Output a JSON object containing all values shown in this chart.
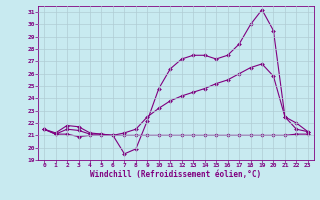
{
  "xlabel": "Windchill (Refroidissement éolien,°C)",
  "xlim": [
    -0.5,
    23.5
  ],
  "ylim": [
    19,
    31.5
  ],
  "yticks": [
    19,
    20,
    21,
    22,
    23,
    24,
    25,
    26,
    27,
    28,
    29,
    30,
    31
  ],
  "xticks": [
    0,
    1,
    2,
    3,
    4,
    5,
    6,
    7,
    8,
    9,
    10,
    11,
    12,
    13,
    14,
    15,
    16,
    17,
    18,
    19,
    20,
    21,
    22,
    23
  ],
  "bg_color": "#c8eaf0",
  "line_color": "#800080",
  "grid_color": "#b0ccd4",
  "line1_x": [
    0,
    1,
    2,
    3,
    4,
    5,
    6,
    7,
    8,
    9,
    10,
    11,
    12,
    13,
    14,
    15,
    16,
    17,
    18,
    19,
    20,
    21,
    22,
    23
  ],
  "line1_y": [
    21.5,
    21.1,
    21.1,
    20.9,
    21.0,
    21.0,
    21.0,
    21.0,
    21.0,
    21.0,
    21.0,
    21.0,
    21.0,
    21.0,
    21.0,
    21.0,
    21.0,
    21.0,
    21.0,
    21.0,
    21.0,
    21.0,
    21.1,
    21.1
  ],
  "line2_x": [
    0,
    1,
    2,
    3,
    4,
    5,
    6,
    7,
    8,
    9,
    10,
    11,
    12,
    13,
    14,
    15,
    16,
    17,
    18,
    19,
    20,
    21,
    22,
    23
  ],
  "line2_y": [
    21.5,
    21.2,
    21.8,
    21.7,
    21.2,
    21.1,
    21.0,
    19.5,
    19.9,
    22.2,
    24.8,
    26.4,
    27.2,
    27.5,
    27.5,
    27.2,
    27.5,
    28.4,
    30.0,
    31.2,
    29.5,
    22.5,
    22.0,
    21.3
  ],
  "line3_x": [
    0,
    1,
    2,
    3,
    4,
    5,
    6,
    7,
    8,
    9,
    10,
    11,
    12,
    13,
    14,
    15,
    16,
    17,
    18,
    19,
    20,
    21,
    22,
    23
  ],
  "line3_y": [
    21.5,
    21.1,
    21.5,
    21.4,
    21.1,
    21.1,
    21.0,
    21.2,
    21.5,
    22.5,
    23.2,
    23.8,
    24.2,
    24.5,
    24.8,
    25.2,
    25.5,
    26.0,
    26.5,
    26.8,
    25.8,
    22.5,
    21.5,
    21.3
  ]
}
